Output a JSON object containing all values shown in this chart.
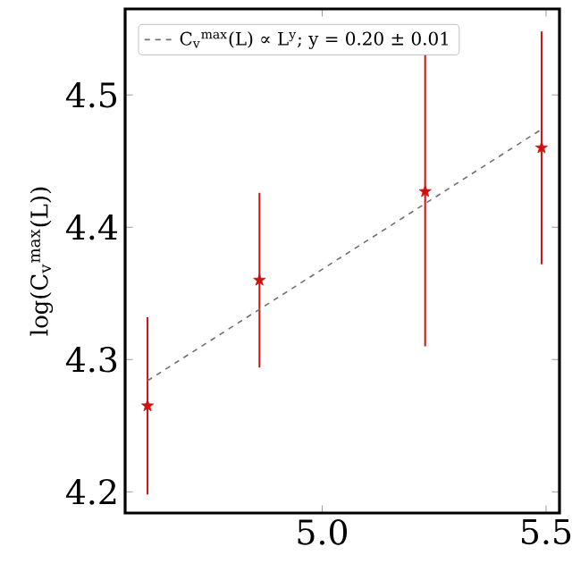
{
  "chart_data": {
    "type": "scatter",
    "ylabel": "log(C$_{v}$$^{max}$(L))",
    "series": [
      {
        "color": "#d01010",
        "x": [
          4.61,
          4.86,
          5.23,
          5.49
        ],
        "values": [
          4.265,
          4.36,
          4.427,
          4.46
        ],
        "errors": [
          0.067,
          0.066,
          0.117,
          0.088
        ],
        "marker": "star"
      },
      {
        "type": "line",
        "name": "C$_{v}$$^{max}$(L) ∝ L$^{y}$; y = 0.20 ± 0.01",
        "color": "#707070",
        "x": [
          4.61,
          5.49
        ],
        "values": [
          4.284,
          4.474
        ],
        "line_style": "dashed",
        "marker": "none"
      }
    ],
    "xlim": [
      4.56,
      5.53
    ],
    "ylim": [
      4.184,
      4.565
    ],
    "xticks": [
      {
        "value": 5,
        "label": "5.0"
      },
      {
        "value": 5.5,
        "label": "5.5"
      }
    ],
    "yticks": [
      4.2,
      4.3,
      4.4,
      4.5
    ],
    "grid": false,
    "legend": "top left"
  }
}
